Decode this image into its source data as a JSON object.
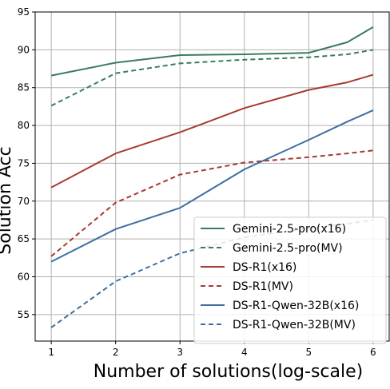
{
  "chart_data": {
    "type": "line",
    "xlabel": "Number of solutions(log-scale)",
    "ylabel": "Solution Acc",
    "xlim": [
      0.75,
      6.25
    ],
    "ylim": [
      51.5,
      95
    ],
    "xticks": [
      1,
      2,
      3,
      4,
      5,
      6
    ],
    "yticks": [
      55,
      60,
      65,
      70,
      75,
      80,
      85,
      90,
      95
    ],
    "grid": true,
    "legend_position": "bottom-right",
    "series": [
      {
        "name": "Gemini-2.5-pro(x16)",
        "color": "#3a7d5c",
        "dash": "solid",
        "points": [
          [
            1,
            86.6
          ],
          [
            2,
            88.3
          ],
          [
            3,
            89.3
          ],
          [
            4,
            89.4
          ],
          [
            5,
            89.6
          ],
          [
            5.6,
            91.0
          ],
          [
            6,
            93.0
          ]
        ]
      },
      {
        "name": "Gemini-2.5-pro(MV)",
        "color": "#3a7d5c",
        "dash": "dashed",
        "points": [
          [
            1,
            82.6
          ],
          [
            2,
            86.9
          ],
          [
            3,
            88.2
          ],
          [
            4,
            88.7
          ],
          [
            5,
            89.0
          ],
          [
            5.6,
            89.4
          ],
          [
            6,
            90.0
          ]
        ]
      },
      {
        "name": "DS-R1(x16)",
        "color": "#a83a32",
        "dash": "solid",
        "points": [
          [
            1,
            71.8
          ],
          [
            2,
            76.3
          ],
          [
            3,
            79.1
          ],
          [
            4,
            82.3
          ],
          [
            5,
            84.7
          ],
          [
            5.6,
            85.7
          ],
          [
            6,
            86.7
          ]
        ]
      },
      {
        "name": "DS-R1(MV)",
        "color": "#a83a32",
        "dash": "dashed",
        "points": [
          [
            1,
            62.7
          ],
          [
            2,
            69.8
          ],
          [
            3,
            73.5
          ],
          [
            4,
            75.1
          ],
          [
            5,
            75.8
          ],
          [
            5.6,
            76.3
          ],
          [
            6,
            76.7
          ]
        ]
      },
      {
        "name": "DS-R1-Qwen-32B(x16)",
        "color": "#3b6fa0",
        "dash": "solid",
        "points": [
          [
            1,
            62.0
          ],
          [
            2,
            66.3
          ],
          [
            3,
            69.1
          ],
          [
            4,
            74.2
          ],
          [
            5,
            78.1
          ],
          [
            5.6,
            80.5
          ],
          [
            6,
            82.0
          ]
        ]
      },
      {
        "name": "DS-R1-Qwen-32B(MV)",
        "color": "#3b6fa0",
        "dash": "dashed",
        "points": [
          [
            1,
            53.3
          ],
          [
            2,
            59.4
          ],
          [
            3,
            63.1
          ],
          [
            4,
            65.2
          ],
          [
            5,
            66.4
          ],
          [
            5.6,
            67.0
          ],
          [
            6,
            67.5
          ]
        ]
      }
    ]
  }
}
